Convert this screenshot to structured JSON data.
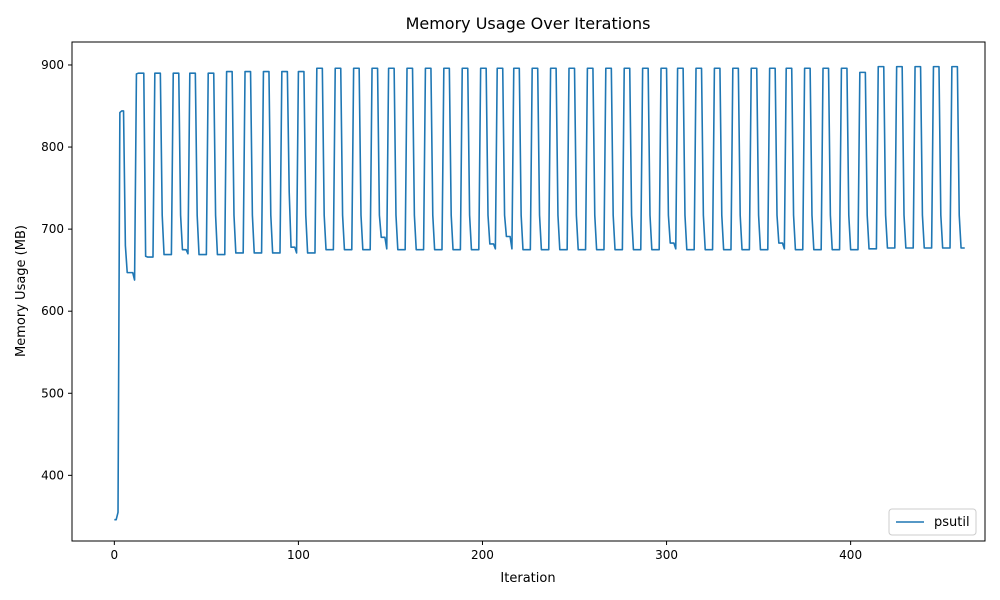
{
  "chart_data": {
    "type": "line",
    "title": "Memory Usage Over Iterations",
    "xlabel": "Iteration",
    "ylabel": "Memory Usage (MB)",
    "xlim": [
      -23,
      473
    ],
    "ylim": [
      320,
      928
    ],
    "xticks": [
      0,
      100,
      200,
      300,
      400
    ],
    "yticks": [
      400,
      500,
      600,
      700,
      800,
      900
    ],
    "grid": false,
    "legend_position": "bottom-right",
    "series": [
      {
        "name": "psutil",
        "color": "#1f77b4",
        "x_start": 0,
        "step": 1,
        "values": [
          346,
          346,
          355,
          842,
          844,
          844,
          680,
          647,
          647,
          647,
          647,
          638,
          889,
          890,
          890,
          890,
          890,
          667,
          666,
          666,
          666,
          666,
          890,
          890,
          890,
          890,
          717,
          669,
          669,
          669,
          669,
          669,
          890,
          890,
          890,
          890,
          717,
          675,
          675,
          675,
          670,
          890,
          890,
          890,
          890,
          717,
          669,
          669,
          669,
          669,
          669,
          890,
          890,
          890,
          890,
          717,
          669,
          669,
          669,
          669,
          669,
          892,
          892,
          892,
          892,
          717,
          671,
          671,
          671,
          671,
          671,
          892,
          892,
          892,
          892,
          717,
          671,
          671,
          671,
          671,
          671,
          892,
          892,
          892,
          892,
          717,
          671,
          671,
          671,
          671,
          671,
          892,
          892,
          892,
          892,
          745,
          678,
          678,
          678,
          671,
          892,
          892,
          892,
          892,
          717,
          671,
          671,
          671,
          671,
          671,
          896,
          896,
          896,
          896,
          717,
          675,
          675,
          675,
          675,
          675,
          896,
          896,
          896,
          896,
          717,
          675,
          675,
          675,
          675,
          675,
          896,
          896,
          896,
          896,
          717,
          675,
          675,
          675,
          675,
          675,
          896,
          896,
          896,
          896,
          717,
          690,
          690,
          690,
          676,
          896,
          896,
          896,
          896,
          717,
          675,
          675,
          675,
          675,
          675,
          896,
          896,
          896,
          896,
          717,
          675,
          675,
          675,
          675,
          675,
          896,
          896,
          896,
          896,
          717,
          675,
          675,
          675,
          675,
          675,
          896,
          896,
          896,
          896,
          717,
          675,
          675,
          675,
          675,
          675,
          896,
          896,
          896,
          896,
          717,
          675,
          675,
          675,
          675,
          675,
          896,
          896,
          896,
          896,
          717,
          682,
          682,
          682,
          676,
          896,
          896,
          896,
          896,
          717,
          691,
          691,
          691,
          676,
          896,
          896,
          896,
          896,
          717,
          675,
          675,
          675,
          675,
          675,
          896,
          896,
          896,
          896,
          717,
          675,
          675,
          675,
          675,
          675,
          896,
          896,
          896,
          896,
          717,
          675,
          675,
          675,
          675,
          675,
          896,
          896,
          896,
          896,
          717,
          675,
          675,
          675,
          675,
          675,
          896,
          896,
          896,
          896,
          717,
          675,
          675,
          675,
          675,
          675,
          896,
          896,
          896,
          896,
          717,
          675,
          675,
          675,
          675,
          675,
          896,
          896,
          896,
          896,
          717,
          675,
          675,
          675,
          675,
          675,
          896,
          896,
          896,
          896,
          717,
          675,
          675,
          675,
          675,
          675,
          896,
          896,
          896,
          896,
          717,
          683,
          683,
          683,
          676,
          896,
          896,
          896,
          896,
          717,
          675,
          675,
          675,
          675,
          675,
          896,
          896,
          896,
          896,
          717,
          675,
          675,
          675,
          675,
          675,
          896,
          896,
          896,
          896,
          717,
          675,
          675,
          675,
          675,
          675,
          896,
          896,
          896,
          896,
          717,
          675,
          675,
          675,
          675,
          675,
          896,
          896,
          896,
          896,
          717,
          675,
          675,
          675,
          675,
          675,
          896,
          896,
          896,
          896,
          717,
          683,
          683,
          683,
          676,
          896,
          896,
          896,
          896,
          717,
          675,
          675,
          675,
          675,
          675,
          896,
          896,
          896,
          896,
          717,
          675,
          675,
          675,
          675,
          675,
          896,
          896,
          896,
          896,
          717,
          675,
          675,
          675,
          675,
          675,
          896,
          896,
          896,
          896,
          717,
          675,
          675,
          675,
          675,
          675,
          891,
          891,
          891,
          891,
          717,
          676,
          676,
          676,
          676,
          676,
          898,
          898,
          898,
          898,
          717,
          677,
          677,
          677,
          677,
          677,
          898,
          898,
          898,
          898,
          717,
          677,
          677,
          677,
          677,
          677,
          898,
          898,
          898,
          898,
          717,
          677,
          677,
          677,
          677,
          677,
          898,
          898,
          898,
          898,
          717,
          677,
          677,
          677,
          677,
          677,
          898,
          898,
          898,
          898,
          717,
          677,
          677,
          677
        ]
      }
    ]
  }
}
